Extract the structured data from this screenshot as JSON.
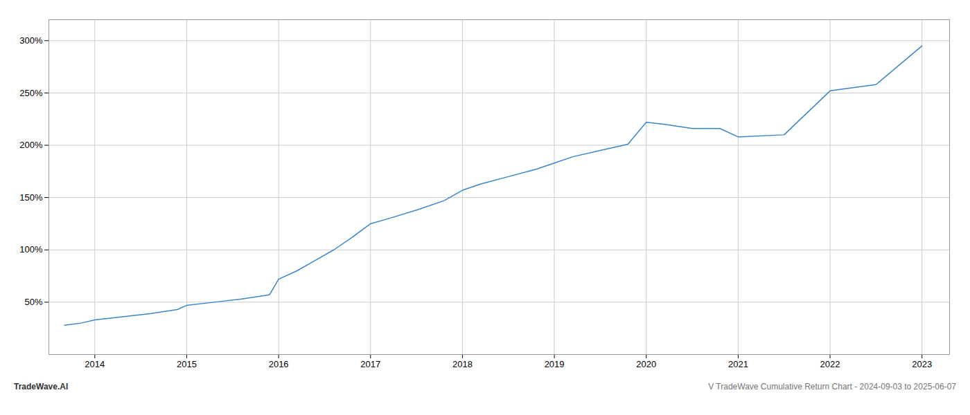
{
  "chart_data": {
    "type": "line",
    "x": [
      2013.67,
      2013.85,
      2014.0,
      2014.3,
      2014.6,
      2014.9,
      2015.0,
      2015.3,
      2015.6,
      2015.9,
      2016.0,
      2016.2,
      2016.4,
      2016.6,
      2016.8,
      2017.0,
      2017.2,
      2017.5,
      2017.8,
      2018.0,
      2018.2,
      2018.5,
      2018.8,
      2019.0,
      2019.2,
      2019.5,
      2019.8,
      2020.0,
      2020.2,
      2020.5,
      2020.8,
      2021.0,
      2021.5,
      2022.0,
      2022.5,
      2023.0
    ],
    "values": [
      28,
      30,
      33,
      36,
      39,
      43,
      47,
      50,
      53,
      57,
      72,
      80,
      90,
      100,
      112,
      125,
      130,
      138,
      147,
      157,
      163,
      170,
      177,
      183,
      189,
      195,
      201,
      222,
      220,
      216,
      216,
      208,
      210,
      252,
      258,
      295
    ],
    "color": "#3a86c8",
    "xlim": [
      2013.5,
      2023.3
    ],
    "xticks": [
      2014,
      2015,
      2016,
      2017,
      2018,
      2019,
      2020,
      2021,
      2022,
      2023
    ],
    "ylim": [
      0,
      320
    ],
    "yticks": [
      {
        "value": 50,
        "label": "50%"
      },
      {
        "value": 100,
        "label": "100%"
      },
      {
        "value": 150,
        "label": "150%"
      },
      {
        "value": 200,
        "label": "200%"
      },
      {
        "value": 250,
        "label": "250%"
      },
      {
        "value": 300,
        "label": "300%"
      }
    ],
    "grid": true,
    "annotations": [
      "TradeWave.AI",
      "V TradeWave Cumulative Return Chart - 2024-09-03 to 2025-06-07"
    ]
  }
}
